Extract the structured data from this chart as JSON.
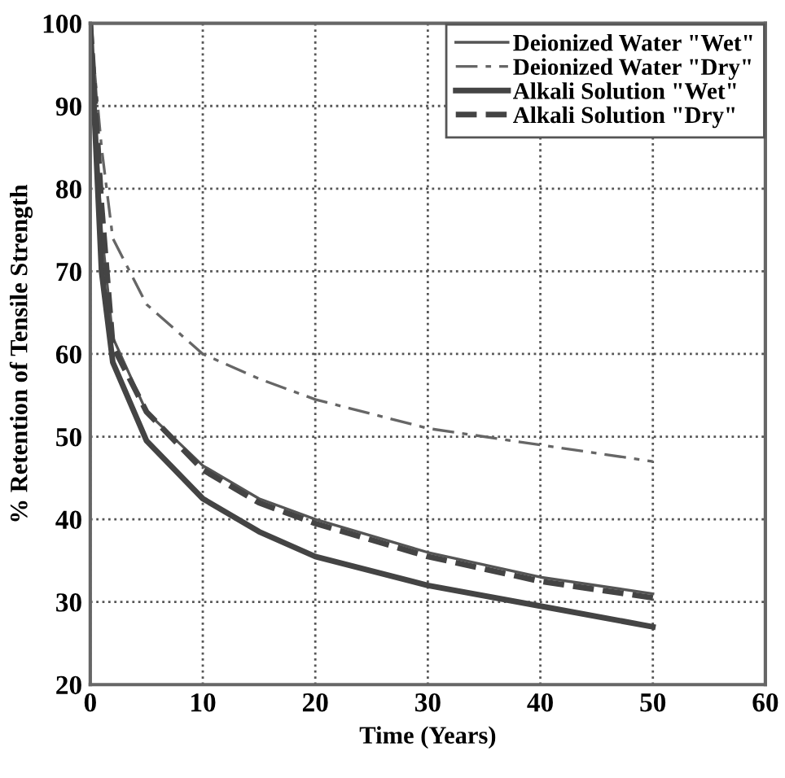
{
  "chart_data": {
    "type": "line",
    "xlabel": "Time (Years)",
    "ylabel": "% Retention of Tensile Strength",
    "xlim": [
      0,
      60
    ],
    "ylim": [
      20,
      100
    ],
    "xticks": [
      0,
      10,
      20,
      30,
      40,
      50,
      60
    ],
    "yticks": [
      20,
      30,
      40,
      50,
      60,
      70,
      80,
      90,
      100
    ],
    "grid": true,
    "legend": "top right",
    "marker": "none",
    "series": [
      {
        "name": "Deionized Water \"Wet\"",
        "color": "#555555",
        "line_style": "solid",
        "x": [
          0,
          1,
          2,
          5,
          10,
          15,
          20,
          30,
          40,
          50
        ],
        "values": [
          100,
          75,
          62,
          53,
          46.5,
          42.5,
          40,
          36,
          33,
          31
        ]
      },
      {
        "name": "Deionized Water \"Dry\"",
        "color": "#666666",
        "line_style": "dashed",
        "x": [
          0,
          1,
          2,
          5,
          10,
          15,
          20,
          30,
          40,
          50
        ],
        "values": [
          100,
          85,
          74,
          66,
          60,
          57,
          54.5,
          51,
          49,
          47
        ]
      },
      {
        "name": "Alkali Solution \"Wet\"",
        "color": "#444444",
        "line_style": "solid",
        "x": [
          0,
          1,
          2,
          5,
          10,
          15,
          20,
          30,
          40,
          50
        ],
        "values": [
          100,
          70,
          59,
          49.5,
          42.5,
          38.5,
          35.5,
          32,
          29.5,
          27
        ]
      },
      {
        "name": "Alkali Solution \"Dry\"",
        "color": "#444444",
        "line_style": "dashed",
        "x": [
          0,
          1,
          2,
          5,
          10,
          15,
          20,
          30,
          40,
          50
        ],
        "values": [
          100,
          78,
          61,
          53,
          46,
          42,
          39.5,
          35.5,
          32.5,
          30.5
        ]
      }
    ]
  }
}
